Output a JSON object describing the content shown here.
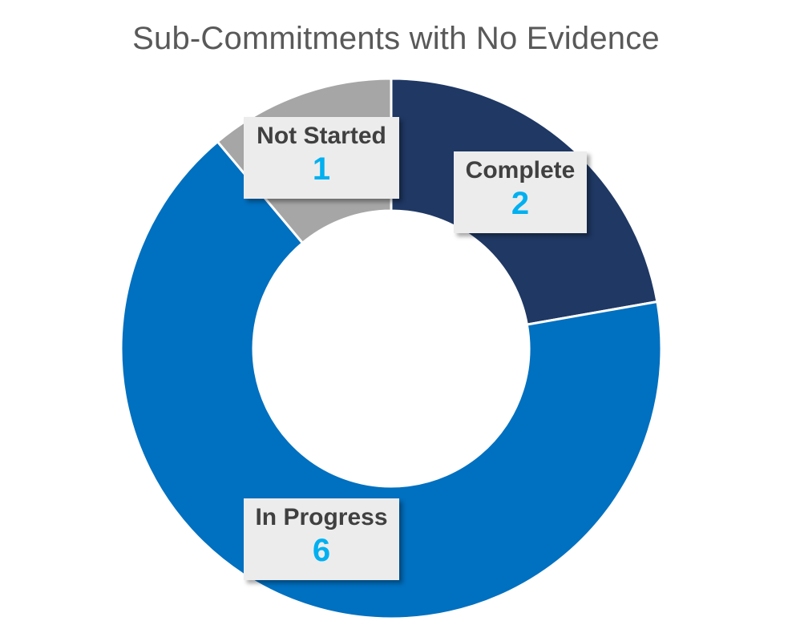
{
  "chart_data": {
    "type": "pie",
    "donut": true,
    "title": "Sub-Commitments with No Evidence",
    "categories": [
      "Complete",
      "In Progress",
      "Not Started"
    ],
    "values": [
      2,
      6,
      1
    ],
    "colors": [
      "#1f3864",
      "#0070c0",
      "#a6a6a6"
    ],
    "value_label_color": "#00b0f0",
    "label_box_color": "#ececec",
    "legend": "none"
  }
}
